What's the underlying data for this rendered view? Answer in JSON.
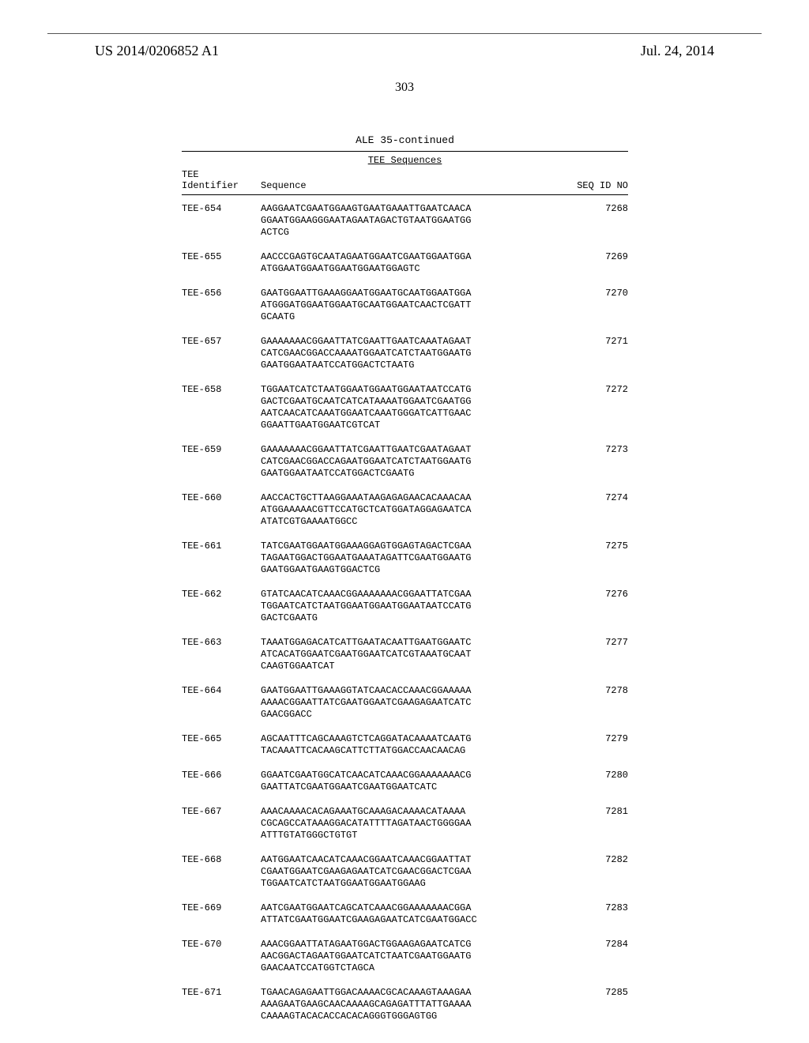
{
  "header": {
    "publication_number": "US 2014/0206852 A1",
    "publication_date": "Jul. 24, 2014",
    "page_number": "303"
  },
  "table": {
    "title": "ALE 35-continued",
    "subtitle": "TEE Sequences",
    "columns": {
      "id_line1": "TEE",
      "id_line2": "Identifier",
      "sequence": "Sequence",
      "seq_id": "SEQ ID NO"
    },
    "rows": [
      {
        "id": "TEE-654",
        "seq": "AAGGAATCGAATGGAAGTGAATGAAATTGAATCAACA\nGGAATGGAAGGGAATAGAATAGACTGTAATGGAATGG\nACTCG",
        "sid": "7268"
      },
      {
        "id": "TEE-655",
        "seq": "AACCCGAGTGCAATAGAATGGAATCGAATGGAATGGA\nATGGAATGGAATGGAATGGAATGGAGTC",
        "sid": "7269"
      },
      {
        "id": "TEE-656",
        "seq": "GAATGGAATTGAAAGGAATGGAATGCAATGGAATGGA\nATGGGATGGAATGGAATGCAATGGAATCAACTCGATT\nGCAATG",
        "sid": "7270"
      },
      {
        "id": "TEE-657",
        "seq": "GAAAAAAACGGAATTATCGAATTGAATCAAATAGAAT\nCATCGAACGGACCAAAATGGAATCATCTAATGGAATG\nGAATGGAATAATCCATGGACTCTAATG",
        "sid": "7271"
      },
      {
        "id": "TEE-658",
        "seq": "TGGAATCATCTAATGGAATGGAATGGAATAATCCATG\nGACTCGAATGCAATCATCATAAAATGGAATCGAATGG\nAATCAACATCAAATGGAATCAAATGGGATCATTGAAC\nGGAATTGAATGGAATCGTCAT",
        "sid": "7272"
      },
      {
        "id": "TEE-659",
        "seq": "GAAAAAAACGGAATTATCGAATTGAATCGAATAGAAT\nCATCGAACGGACCAGAATGGAATCATCTAATGGAATG\nGAATGGAATAATCCATGGACTCGAATG",
        "sid": "7273"
      },
      {
        "id": "TEE-660",
        "seq": "AACCACTGCTTAAGGAAATAAGAGAGAACACAAACAA\nATGGAAAAACGTTCCATGCTCATGGATAGGAGAATCA\nATATCGTGAAAATGGCC",
        "sid": "7274"
      },
      {
        "id": "TEE-661",
        "seq": "TATCGAATGGAATGGAAAGGAGTGGAGTAGACTCGAA\nTAGAATGGACTGGAATGAAATAGATTCGAATGGAATG\nGAATGGAATGAAGTGGACTCG",
        "sid": "7275"
      },
      {
        "id": "TEE-662",
        "seq": "GTATCAACATCAAACGGAAAAAAACGGAATTATCGAA\nTGGAATCATCTAATGGAATGGAATGGAATAATCCATG\nGACTCGAATG",
        "sid": "7276"
      },
      {
        "id": "TEE-663",
        "seq": "TAAATGGAGACATCATTGAATACAATTGAATGGAATC\nATCACATGGAATCGAATGGAATCATCGTAAATGCAAT\nCAAGTGGAATCAT",
        "sid": "7277"
      },
      {
        "id": "TEE-664",
        "seq": "GAATGGAATTGAAAGGTATCAACACCAAACGGAAAAA\nAAAACGGAATTATCGAATGGAATCGAAGAGAATCATC\nGAACGGACC",
        "sid": "7278"
      },
      {
        "id": "TEE-665",
        "seq": "AGCAATTTCAGCAAAGTCTCAGGATACAAAATCAATG\nTACAAATTCACAAGCATTCTTATGGACCAACAACAG",
        "sid": "7279"
      },
      {
        "id": "TEE-666",
        "seq": "GGAATCGAATGGCATCAACATCAAACGGAAAAAAACG\nGAATTATCGAATGGAATCGAATGGAATCATC",
        "sid": "7280"
      },
      {
        "id": "TEE-667",
        "seq": "AAACAAAACACAGAAATGCAAAGACAAAACATAAAA\nCGCAGCCATAAAGGACATATTTTAGATAACTGGGGAA\nATTTGTATGGGCTGTGT",
        "sid": "7281"
      },
      {
        "id": "TEE-668",
        "seq": "AATGGAATCAACATCAAACGGAATCAAACGGAATTAT\nCGAATGGAATCGAAGAGAATCATCGAACGGACTCGAA\nTGGAATCATCTAATGGAATGGAATGGAAG",
        "sid": "7282"
      },
      {
        "id": "TEE-669",
        "seq": "AATCGAATGGAATCAGCATCAAACGGAAAAAAACGGA\nATTATCGAATGGAATCGAAGAGAATCATCGAATGGACC",
        "sid": "7283"
      },
      {
        "id": "TEE-670",
        "seq": "AAACGGAATTATAGAATGGACTGGAAGAGAATCATCG\nAACGGACTAGAATGGAATCATCTAATCGAATGGAATG\nGAACAATCCATGGTCTAGCA",
        "sid": "7284"
      },
      {
        "id": "TEE-671",
        "seq": "TGAACAGAGAATTGGACAAAACGCACAAAGTAAAGAA\nAAAGAATGAAGCAACAAAAGCAGAGATTTATTGAAAA\nCAAAAGTACACACCACACAGGGTGGGAGTGG",
        "sid": "7285"
      }
    ]
  }
}
